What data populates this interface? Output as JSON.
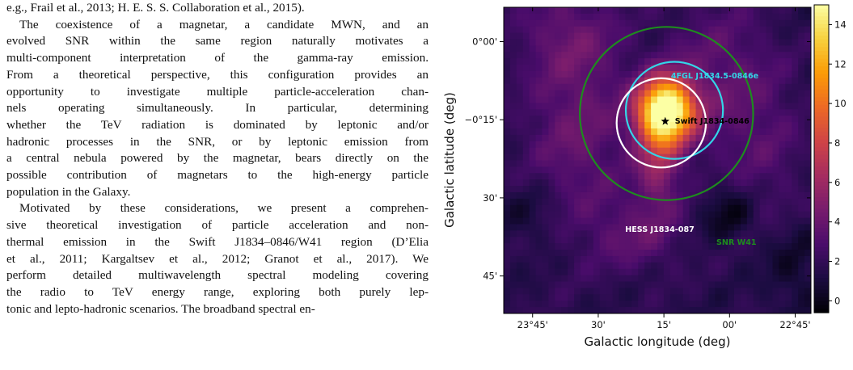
{
  "paper": {
    "paragraphs": [
      {
        "indent": false,
        "lines": [
          "e.g., Frail et al., 2013; H. E. S. S. Collaboration et al., 2015)."
        ]
      },
      {
        "indent": true,
        "lines": [
          "The coexistence of a magnetar, a candidate MWN, and an",
          "evolved SNR within the same region naturally motivates a",
          "multi-component interpretation of the gamma-ray emission.",
          "From a theoretical perspective, this configuration provides an",
          "opportunity to investigate multiple particle-acceleration chan-",
          "nels operating simultaneously.   In particular, determining",
          "whether the TeV radiation is dominated by leptonic and/or",
          "hadronic processes in the SNR, or by leptonic emission from",
          "a central nebula powered by the magnetar, bears directly on the",
          "possible contribution of magnetars to the high-energy particle",
          "population in the Galaxy."
        ]
      },
      {
        "indent": true,
        "lines": [
          "Motivated by these considerations, we present a comprehen-",
          "sive theoretical investigation of particle acceleration and non-",
          "thermal emission in the Swift J1834–0846/W41 region (D’Elia",
          "et al., 2011; Kargaltsev et al., 2012; Granot et al., 2017).  We",
          "perform detailed multiwavelength spectral modeling covering",
          "the radio to TeV energy range, exploring both purely lep-",
          "tonic and lepto-hadronic scenarios. The broadband spectral en-"
        ]
      }
    ]
  },
  "figure": {
    "xlabel": "Galactic longitude (deg)",
    "ylabel": "Galactic latitude (deg)",
    "x_ticks": [
      {
        "value": 23.75,
        "label": "23°45'"
      },
      {
        "value": 23.5,
        "label": "30'"
      },
      {
        "value": 23.25,
        "label": "15'"
      },
      {
        "value": 23.0,
        "label": "00'"
      },
      {
        "value": 22.75,
        "label": "22°45'"
      }
    ],
    "y_ticks": [
      {
        "value": 0.0,
        "label": "0°00'"
      },
      {
        "value": -0.25,
        "label": "−0°15'"
      },
      {
        "value": -0.5,
        "label": "30'"
      },
      {
        "value": -0.75,
        "label": "45'"
      }
    ],
    "colorbar": {
      "min": -0.6,
      "max": 15.0,
      "ticks": [
        "0",
        "2",
        "4",
        "6",
        "8",
        "10",
        "12",
        "14"
      ],
      "colormap": "inferno",
      "colors": [
        "#000004",
        "#1b0c41",
        "#4a0c6b",
        "#781c6d",
        "#a52c60",
        "#cf4446",
        "#ed6925",
        "#fb9b06",
        "#f7d13d",
        "#fcffa4"
      ]
    },
    "annotations": {
      "fgl_label": "4FGL J1834.5-0846e",
      "fgl_color": "#33d6e8",
      "hess_label": "HESS J1834-087",
      "hess_color": "#ffffff",
      "swift_label": "Swift J1834-0846",
      "swift_color": "#000000",
      "snr_label": "SNR W41",
      "snr_color": "#1e8c1e"
    }
  },
  "chart_data": {
    "type": "heatmap",
    "description_axes": {
      "x": "Galactic longitude (deg)",
      "y": "Galactic latitude (deg)"
    },
    "xlim": [
      23.86,
      22.69
    ],
    "ylim": [
      -0.87,
      0.11
    ],
    "value_range": [
      -0.6,
      15.0
    ],
    "colorbar_ticks": [
      0,
      2,
      4,
      6,
      8,
      10,
      12,
      14
    ],
    "emission_components": [
      {
        "l": 23.24,
        "b": -0.22,
        "sigma_l": 0.075,
        "sigma_b": 0.07,
        "peak": 14.3
      },
      {
        "l": 23.27,
        "b": -0.36,
        "sigma_l": 0.06,
        "sigma_b": 0.12,
        "peak": 4.0
      },
      {
        "l": 23.58,
        "b": -0.27,
        "sigma_l": 0.14,
        "sigma_b": 0.24,
        "peak": 2.3
      },
      {
        "l": 23.05,
        "b": -0.12,
        "sigma_l": 0.14,
        "sigma_b": 0.18,
        "peak": 2.0
      },
      {
        "l": 23.35,
        "b": -0.62,
        "sigma_l": 0.12,
        "sigma_b": 0.08,
        "peak": 1.8
      },
      {
        "l": 23.62,
        "b": 0.02,
        "sigma_l": 0.13,
        "sigma_b": 0.09,
        "peak": 1.5
      },
      {
        "l": 22.85,
        "b": -0.35,
        "sigma_l": 0.1,
        "sigma_b": 0.2,
        "peak": 1.2
      }
    ],
    "baseline": 1.6,
    "dark_spots": [
      {
        "l": 23.0,
        "b": -0.55,
        "sigma_l": 0.07,
        "sigma_b": 0.06,
        "depth": 1.8
      },
      {
        "l": 23.75,
        "b": -0.55,
        "sigma_l": 0.09,
        "sigma_b": 0.08,
        "depth": 1.0
      },
      {
        "l": 22.76,
        "b": -0.72,
        "sigma_l": 0.08,
        "sigma_b": 0.1,
        "depth": 1.2
      }
    ],
    "circles": [
      {
        "name": "4FGL J1834.5-0846e",
        "l": 23.21,
        "b": -0.22,
        "r": 0.185
      },
      {
        "name": "HESS J1834-087",
        "l": 23.26,
        "b": -0.26,
        "r": 0.17
      },
      {
        "name": "SNR W41",
        "l": 23.24,
        "b": -0.23,
        "r": 0.33
      }
    ],
    "points": [
      {
        "name": "Swift J1834-0846",
        "l": 23.245,
        "b": -0.255
      }
    ]
  }
}
